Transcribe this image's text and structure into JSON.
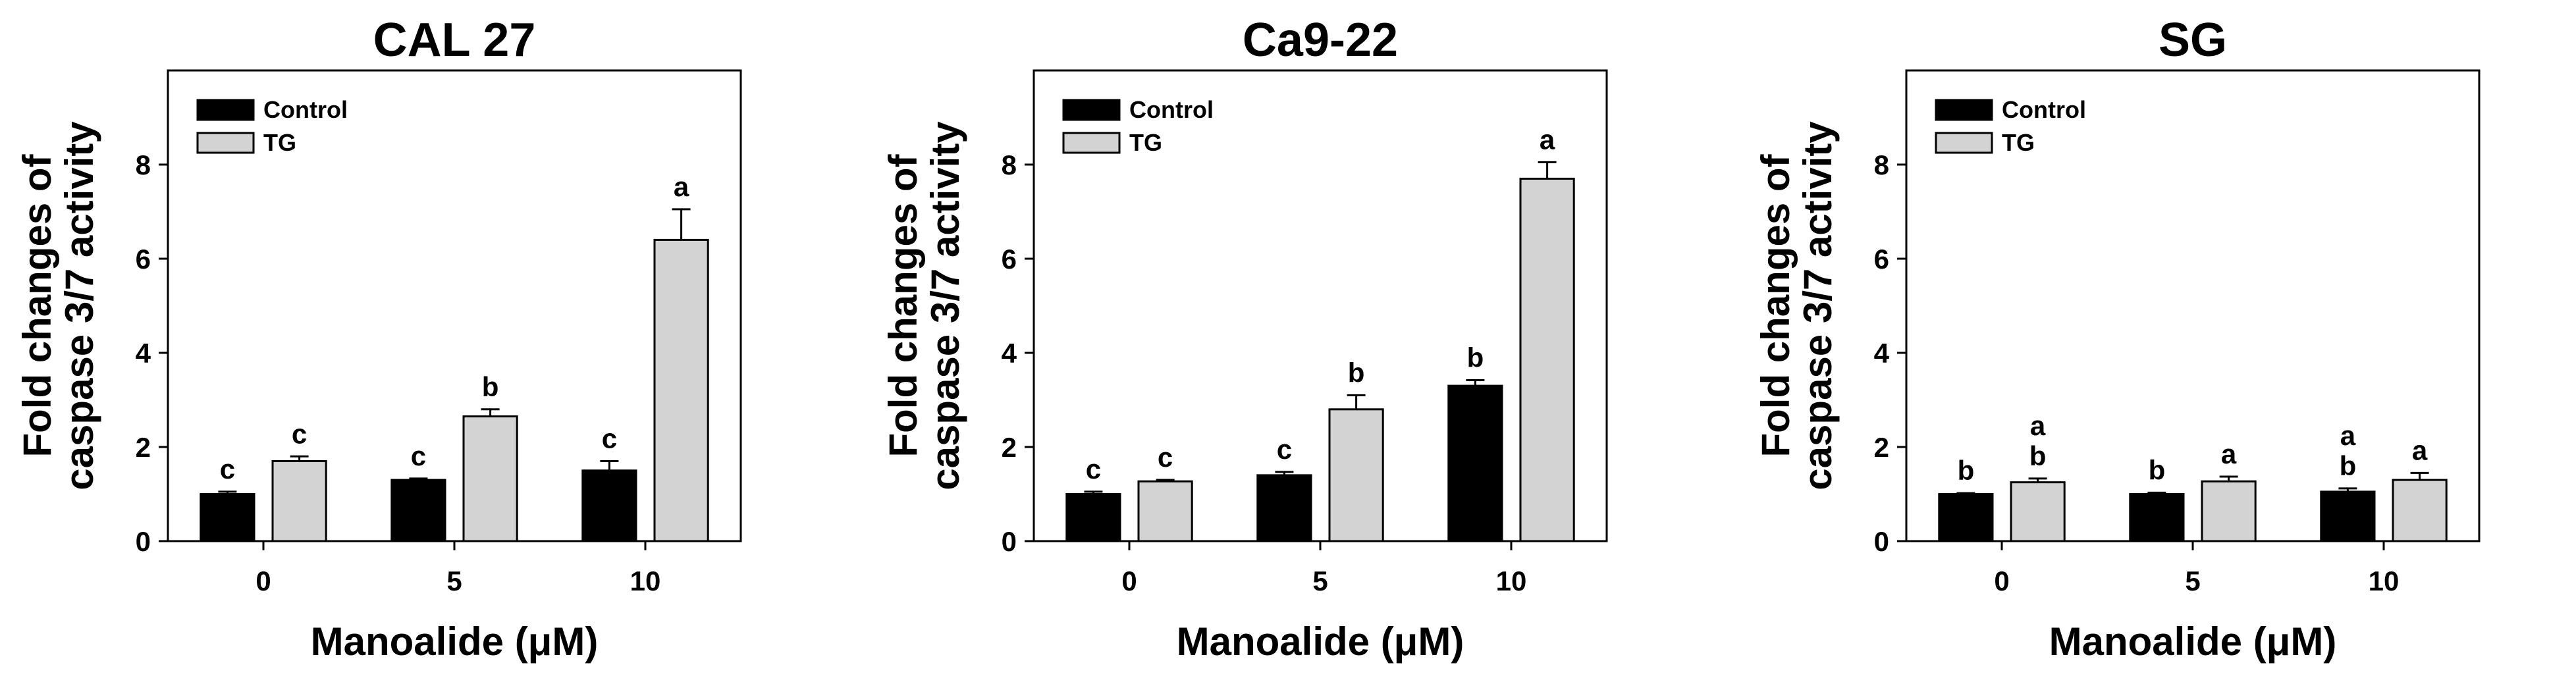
{
  "chart_data": [
    {
      "type": "bar",
      "title": "CAL 27",
      "xlabel": "Manoalide (μM)",
      "ylabel_line1": "Fold changes of",
      "ylabel_line2": "caspase 3/7 activity",
      "categories": [
        "0",
        "5",
        "10"
      ],
      "ylim": [
        0,
        10
      ],
      "yticks": [
        0,
        2,
        4,
        6,
        8
      ],
      "legend": [
        "Control",
        "TG"
      ],
      "legend_position": "top-left",
      "series": [
        {
          "name": "Control",
          "color": "#000000",
          "values": [
            1.0,
            1.3,
            1.5
          ],
          "errors": [
            0.05,
            0.03,
            0.2
          ],
          "labels": [
            "c",
            "c",
            "c"
          ]
        },
        {
          "name": "TG",
          "color": "#d3d3d3",
          "values": [
            1.7,
            2.65,
            6.4
          ],
          "errors": [
            0.1,
            0.15,
            0.65
          ],
          "labels": [
            "c",
            "b",
            "a"
          ]
        }
      ]
    },
    {
      "type": "bar",
      "title": "Ca9-22",
      "xlabel": "Manoalide (μM)",
      "ylabel_line1": "Fold changes of",
      "ylabel_line2": "caspase 3/7 activity",
      "categories": [
        "0",
        "5",
        "10"
      ],
      "ylim": [
        0,
        10
      ],
      "yticks": [
        0,
        2,
        4,
        6,
        8
      ],
      "legend": [
        "Control",
        "TG"
      ],
      "legend_position": "top-left",
      "series": [
        {
          "name": "Control",
          "color": "#000000",
          "values": [
            1.0,
            1.4,
            3.3
          ],
          "errors": [
            0.05,
            0.07,
            0.12
          ],
          "labels": [
            "c",
            "c",
            "b"
          ]
        },
        {
          "name": "TG",
          "color": "#d3d3d3",
          "values": [
            1.27,
            2.8,
            7.7
          ],
          "errors": [
            0.03,
            0.3,
            0.35
          ],
          "labels": [
            "c",
            "b",
            "a"
          ]
        }
      ]
    },
    {
      "type": "bar",
      "title": "SG",
      "xlabel": "Manoalide (μM)",
      "ylabel_line1": "Fold changes of",
      "ylabel_line2": "caspase 3/7 activity",
      "categories": [
        "0",
        "5",
        "10"
      ],
      "ylim": [
        0,
        10
      ],
      "yticks": [
        0,
        2,
        4,
        6,
        8
      ],
      "legend": [
        "Control",
        "TG"
      ],
      "legend_position": "top-left",
      "series": [
        {
          "name": "Control",
          "color": "#000000",
          "values": [
            1.0,
            1.0,
            1.05
          ],
          "errors": [
            0.02,
            0.03,
            0.07
          ],
          "labels": [
            "b",
            "b",
            "ab"
          ]
        },
        {
          "name": "TG",
          "color": "#d3d3d3",
          "values": [
            1.25,
            1.27,
            1.3
          ],
          "errors": [
            0.08,
            0.1,
            0.15
          ],
          "labels": [
            "ab",
            "a",
            "a"
          ]
        }
      ]
    }
  ]
}
